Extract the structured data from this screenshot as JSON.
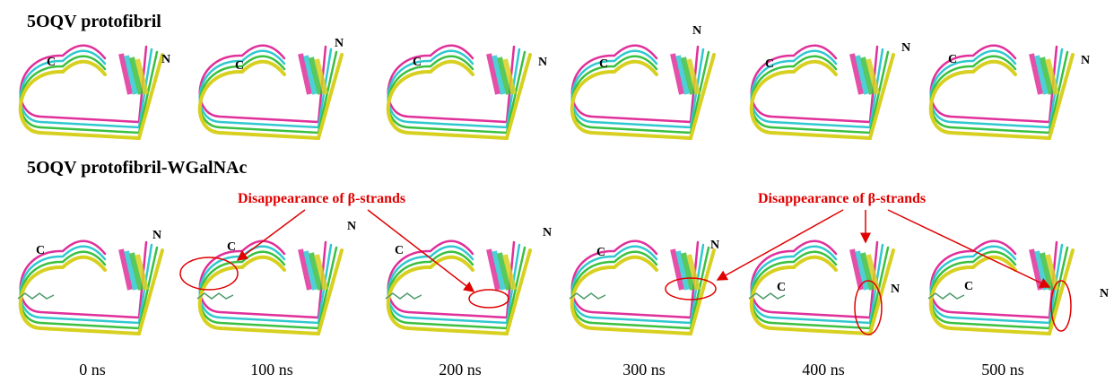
{
  "rows": [
    {
      "title": "5OQV protofibril",
      "panels": [
        {
          "c": "C",
          "n": "N"
        },
        {
          "c": "C",
          "n": "N"
        },
        {
          "c": "C",
          "n": "N"
        },
        {
          "c": "C",
          "n": "N"
        },
        {
          "c": "C",
          "n": "N"
        },
        {
          "c": "C",
          "n": "N"
        }
      ]
    },
    {
      "title": "5OQV protofibril-WGalNAc",
      "panels": [
        {
          "c": "C",
          "n": "N"
        },
        {
          "c": "C",
          "n": "N"
        },
        {
          "c": "C",
          "n": "N"
        },
        {
          "c": "C",
          "n": "N"
        },
        {
          "c": "C",
          "n": "N"
        },
        {
          "c": "C",
          "n": "N"
        }
      ]
    }
  ],
  "annotations": [
    "Disappearance of β-strands",
    "Disappearance of β-strands"
  ],
  "time_labels": [
    "0 ns",
    "100 ns",
    "200 ns",
    "300 ns",
    "400 ns",
    "500 ns"
  ]
}
